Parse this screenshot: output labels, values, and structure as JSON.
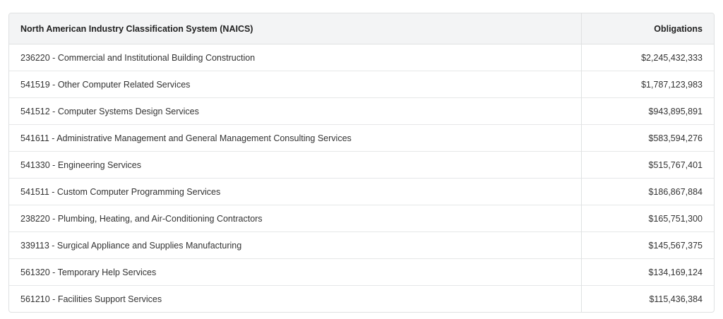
{
  "table": {
    "headers": [
      "North American Industry Classification System (NAICS)",
      "Obligations"
    ],
    "rows": [
      {
        "naics": "236220 - Commercial and Institutional Building Construction",
        "obligations": "$2,245,432,333"
      },
      {
        "naics": "541519 - Other Computer Related Services",
        "obligations": "$1,787,123,983"
      },
      {
        "naics": "541512 - Computer Systems Design Services",
        "obligations": "$943,895,891"
      },
      {
        "naics": "541611 - Administrative Management and General Management Consulting Services",
        "obligations": "$583,594,276"
      },
      {
        "naics": "541330 - Engineering Services",
        "obligations": "$515,767,401"
      },
      {
        "naics": "541511 - Custom Computer Programming Services",
        "obligations": "$186,867,884"
      },
      {
        "naics": "238220 - Plumbing, Heating, and Air-Conditioning Contractors",
        "obligations": "$165,751,300"
      },
      {
        "naics": "339113 - Surgical Appliance and Supplies Manufacturing",
        "obligations": "$145,567,375"
      },
      {
        "naics": "561320 - Temporary Help Services",
        "obligations": "$134,169,124"
      },
      {
        "naics": "561210 - Facilities Support Services",
        "obligations": "$115,436,384"
      }
    ]
  }
}
